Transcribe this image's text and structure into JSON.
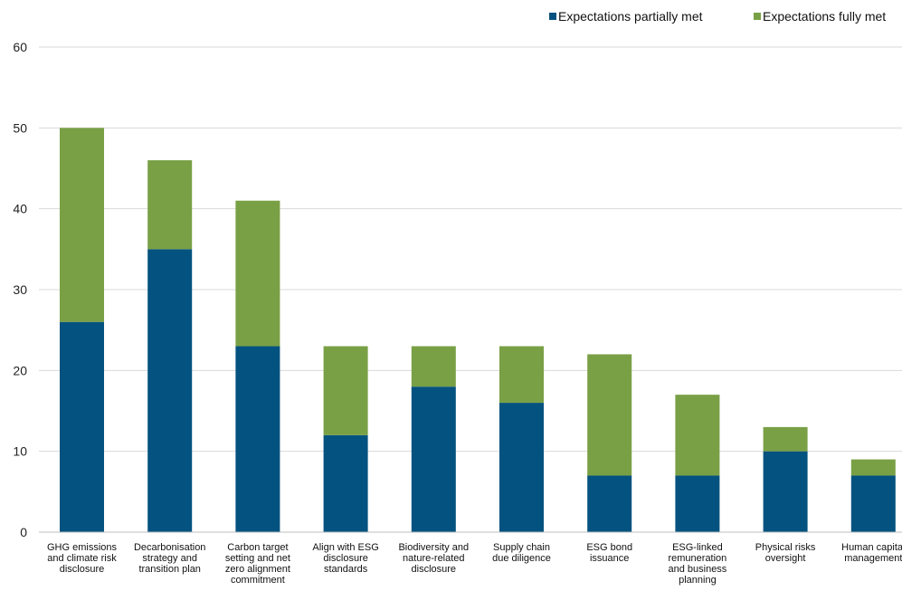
{
  "chart_data": {
    "type": "bar",
    "stacked": true,
    "categories": [
      "GHG emissions and climate risk disclosure",
      "Decarbonisation strategy and transition plan",
      "Carbon target setting and net zero alignment commitment",
      "Align with ESG disclosure standards",
      "Biodiversity and nature-related disclosure",
      "Supply chain due diligence",
      "ESG bond issuance",
      "ESG-linked remuneration and business planning",
      "Physical risks oversight",
      "Human capital management"
    ],
    "category_lines": [
      [
        "GHG emissions",
        "and climate risk",
        "disclosure"
      ],
      [
        "Decarbonisation",
        "strategy and",
        "transition plan"
      ],
      [
        "Carbon target",
        "setting and net",
        "zero alignment",
        "commitment"
      ],
      [
        "Align with ESG",
        "disclosure",
        "standards"
      ],
      [
        "Biodiversity and",
        "nature-related",
        "disclosure"
      ],
      [
        "Supply chain",
        "due diligence"
      ],
      [
        "ESG bond",
        "issuance"
      ],
      [
        "ESG-linked",
        "remuneration",
        "and business",
        "planning"
      ],
      [
        "Physical risks",
        "oversight"
      ],
      [
        "Human capital",
        "management"
      ]
    ],
    "series": [
      {
        "name": "Expectations partially met",
        "color": "#03527f",
        "values": [
          26,
          35,
          23,
          12,
          18,
          16,
          7,
          7,
          10,
          7
        ]
      },
      {
        "name": "Expectations fully met",
        "color": "#79a045",
        "values": [
          24,
          11,
          18,
          11,
          5,
          7,
          15,
          10,
          3,
          2
        ]
      }
    ],
    "yticks": [
      0,
      10,
      20,
      30,
      40,
      50,
      60
    ],
    "ylim": [
      0,
      60
    ],
    "grid": true,
    "legend": "top-right",
    "title": "",
    "xlabel": "",
    "ylabel": ""
  }
}
